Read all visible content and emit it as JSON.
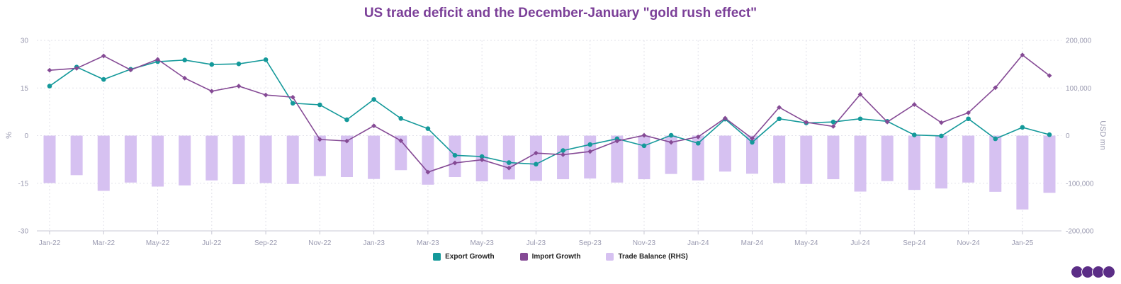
{
  "chart_data": {
    "type": "bar+line",
    "title": "US trade deficit and the December-January \"gold rush effect\"",
    "ylabel_left": "%",
    "ylabel_right": "USD mn",
    "ylim_left": [
      -30,
      30
    ],
    "ylim_right": [
      -200000,
      200000
    ],
    "yticks_left": [
      "30",
      "15",
      "0",
      "-15",
      "-30"
    ],
    "yticks_right": [
      "200,000",
      "100,000",
      "0",
      "-100,000",
      "-200,000"
    ],
    "categories": [
      "Jan-22",
      "Feb-22",
      "Mar-22",
      "Apr-22",
      "May-22",
      "Jun-22",
      "Jul-22",
      "Aug-22",
      "Sep-22",
      "Oct-22",
      "Nov-22",
      "Dec-22",
      "Jan-23",
      "Feb-23",
      "Mar-23",
      "Apr-23",
      "May-23",
      "Jun-23",
      "Jul-23",
      "Aug-23",
      "Sep-23",
      "Oct-23",
      "Nov-23",
      "Dec-23",
      "Jan-24",
      "Feb-24",
      "Mar-24",
      "Apr-24",
      "May-24",
      "Jun-24",
      "Jul-24",
      "Aug-24",
      "Sep-24",
      "Oct-24",
      "Nov-24",
      "Dec-24",
      "Jan-25",
      "Feb-25"
    ],
    "xtick_labels": [
      "Jan-22",
      "Mar-22",
      "May-22",
      "Jul-22",
      "Sep-22",
      "Nov-22",
      "Jan-23",
      "Mar-23",
      "May-23",
      "Jul-23",
      "Sep-23",
      "Nov-23",
      "Jan-24",
      "Mar-24",
      "May-24",
      "Jul-24",
      "Sep-24",
      "Nov-24",
      "Jan-25"
    ],
    "series": [
      {
        "name": "Export Growth",
        "axis": "left",
        "kind": "line",
        "color": "#14999a",
        "values": [
          15.6,
          21.6,
          17.7,
          20.9,
          23.3,
          23.8,
          22.4,
          22.6,
          23.9,
          10.2,
          9.7,
          5.0,
          11.4,
          5.4,
          2.2,
          -6.2,
          -6.6,
          -8.5,
          -9.0,
          -4.7,
          -2.8,
          -1.0,
          -3.2,
          0.1,
          -2.4,
          5.2,
          -2.1,
          5.3,
          4.0,
          4.3,
          5.3,
          4.5,
          0.2,
          -0.1,
          5.3,
          -1.0,
          2.6,
          0.3
        ]
      },
      {
        "name": "Import Growth",
        "axis": "left",
        "kind": "line",
        "color": "#854a95",
        "values": [
          20.6,
          21.2,
          25.1,
          20.7,
          24.0,
          18.1,
          14.0,
          15.6,
          12.8,
          12.1,
          -1.2,
          -1.7,
          3.1,
          -1.6,
          -11.5,
          -8.6,
          -7.6,
          -10.2,
          -5.5,
          -6.0,
          -5.0,
          -1.7,
          0.1,
          -2.1,
          -0.4,
          5.5,
          -0.9,
          8.9,
          4.2,
          2.9,
          13.0,
          4.3,
          9.8,
          4.1,
          7.2,
          15.1,
          25.4,
          18.9
        ]
      },
      {
        "name": "Trade Balance (RHS)",
        "axis": "right",
        "kind": "bar",
        "color": "#d6c1f1",
        "values": [
          -99500,
          -83000,
          -116000,
          -98500,
          -107000,
          -104500,
          -94000,
          -102000,
          -99500,
          -101500,
          -85000,
          -87000,
          -91000,
          -72500,
          -103000,
          -87000,
          -96000,
          -92000,
          -95000,
          -91500,
          -90000,
          -98500,
          -91500,
          -80500,
          -94000,
          -75500,
          -80000,
          -99500,
          -101500,
          -91500,
          -117500,
          -95500,
          -114000,
          -111000,
          -98500,
          -118000,
          -155000,
          -120000
        ]
      }
    ]
  }
}
